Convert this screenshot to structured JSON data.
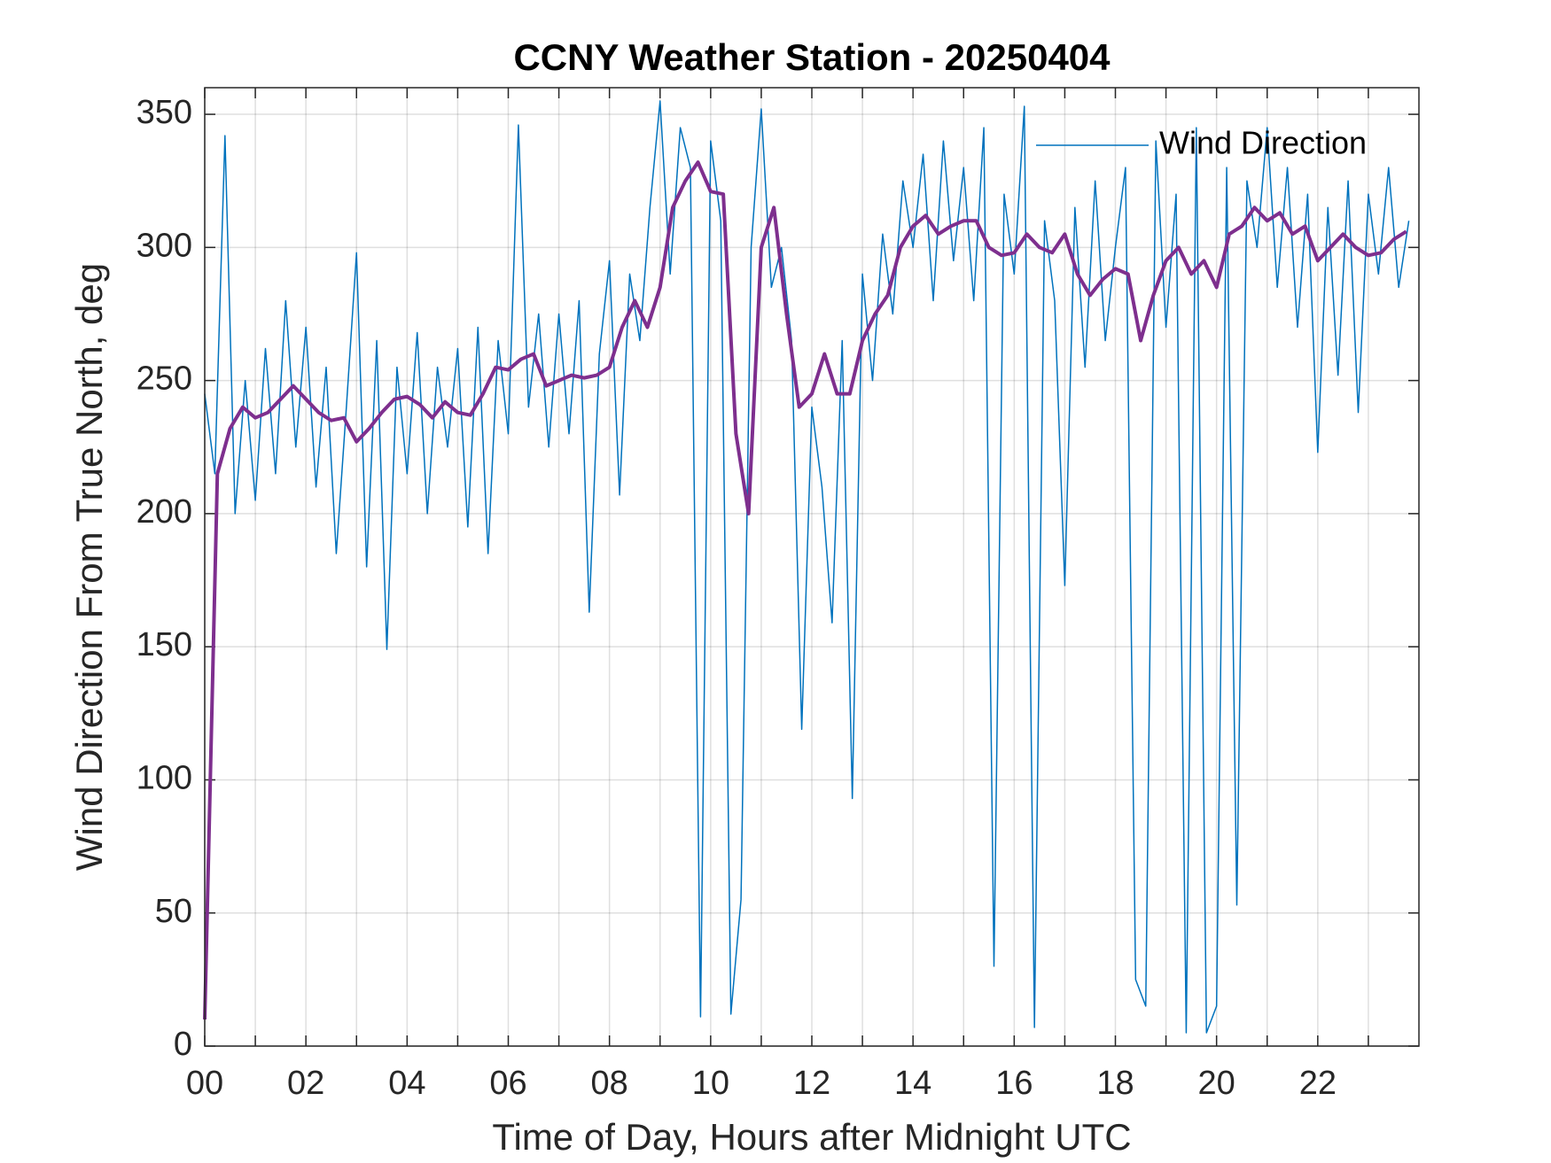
{
  "chart_data": {
    "type": "line",
    "title": "CCNY Weather Station - 20250404",
    "xlabel": "Time of Day, Hours after Midnight UTC",
    "ylabel": "Wind Direction From True North, deg",
    "xlim": [
      0,
      24
    ],
    "ylim": [
      0,
      360
    ],
    "xticks": [
      {
        "value": 0,
        "label": "00"
      },
      {
        "value": 2,
        "label": "02"
      },
      {
        "value": 4,
        "label": "04"
      },
      {
        "value": 6,
        "label": "06"
      },
      {
        "value": 8,
        "label": "08"
      },
      {
        "value": 10,
        "label": "10"
      },
      {
        "value": 12,
        "label": "12"
      },
      {
        "value": 14,
        "label": "14"
      },
      {
        "value": 16,
        "label": "16"
      },
      {
        "value": 18,
        "label": "18"
      },
      {
        "value": 20,
        "label": "20"
      },
      {
        "value": 22,
        "label": "22"
      }
    ],
    "xminor_ticks": [
      1,
      3,
      5,
      7,
      9,
      11,
      13,
      15,
      17,
      19,
      21,
      23
    ],
    "yticks": [
      0,
      50,
      100,
      150,
      200,
      250,
      300,
      350
    ],
    "grid": true,
    "legend": "northeast",
    "series": [
      {
        "name": "Wind Direction",
        "color": "#0072bd",
        "width": 1.5,
        "x": [
          0,
          0.2,
          0.4,
          0.6,
          0.8,
          1,
          1.2,
          1.4,
          1.6,
          1.8,
          2,
          2.2,
          2.4,
          2.6,
          2.8,
          3,
          3.2,
          3.4,
          3.6,
          3.8,
          4,
          4.2,
          4.4,
          4.6,
          4.8,
          5,
          5.2,
          5.4,
          5.6,
          5.8,
          6,
          6.2,
          6.4,
          6.6,
          6.8,
          7,
          7.2,
          7.4,
          7.6,
          7.8,
          8,
          8.2,
          8.4,
          8.6,
          8.8,
          9,
          9.2,
          9.4,
          9.6,
          9.8,
          10,
          10.2,
          10.4,
          10.6,
          10.8,
          11,
          11.2,
          11.4,
          11.6,
          11.8,
          12,
          12.2,
          12.4,
          12.6,
          12.8,
          13,
          13.2,
          13.4,
          13.6,
          13.8,
          14,
          14.2,
          14.4,
          14.6,
          14.8,
          15,
          15.2,
          15.4,
          15.6,
          15.8,
          16,
          16.2,
          16.4,
          16.6,
          16.8,
          17,
          17.2,
          17.4,
          17.6,
          17.8,
          18,
          18.2,
          18.4,
          18.6,
          18.8,
          19,
          19.2,
          19.4,
          19.6,
          19.8,
          20,
          20.2,
          20.4,
          20.6,
          20.8,
          21,
          21.2,
          21.4,
          21.6,
          21.8,
          22,
          22.2,
          22.4,
          22.6,
          22.8,
          23,
          23.2,
          23.4,
          23.6,
          23.8
        ],
        "values": [
          245,
          215,
          342,
          200,
          250,
          205,
          262,
          215,
          280,
          225,
          270,
          210,
          255,
          185,
          240,
          298,
          180,
          265,
          149,
          255,
          215,
          268,
          200,
          255,
          225,
          262,
          195,
          270,
          185,
          265,
          230,
          346,
          240,
          275,
          225,
          275,
          230,
          280,
          163,
          260,
          295,
          207,
          290,
          265,
          315,
          355,
          290,
          345,
          330,
          11,
          340,
          310,
          12,
          55,
          300,
          352,
          285,
          300,
          265,
          119,
          240,
          210,
          159,
          265,
          93,
          290,
          250,
          305,
          275,
          325,
          300,
          335,
          280,
          340,
          295,
          330,
          280,
          345,
          30,
          320,
          290,
          353,
          7,
          310,
          280,
          173,
          315,
          255,
          325,
          265,
          300,
          330,
          25,
          15,
          340,
          270,
          320,
          5,
          345,
          5,
          15,
          330,
          53,
          325,
          300,
          345,
          285,
          330,
          270,
          320,
          223,
          315,
          252,
          325,
          238,
          320,
          290,
          330,
          285,
          310
        ]
      },
      {
        "color": "#7e2f8e",
        "width": 4,
        "x": [
          0,
          0.25,
          0.5,
          0.75,
          1,
          1.25,
          1.5,
          1.75,
          2,
          2.25,
          2.5,
          2.75,
          3,
          3.25,
          3.5,
          3.75,
          4,
          4.25,
          4.5,
          4.75,
          5,
          5.25,
          5.5,
          5.75,
          6,
          6.25,
          6.5,
          6.75,
          7,
          7.25,
          7.5,
          7.75,
          8,
          8.25,
          8.5,
          8.75,
          9,
          9.25,
          9.5,
          9.75,
          10,
          10.25,
          10.5,
          10.75,
          11,
          11.25,
          11.5,
          11.75,
          12,
          12.25,
          12.5,
          12.75,
          13,
          13.25,
          13.5,
          13.75,
          14,
          14.25,
          14.5,
          14.75,
          15,
          15.25,
          15.5,
          15.75,
          16,
          16.25,
          16.5,
          16.75,
          17,
          17.25,
          17.5,
          17.75,
          18,
          18.25,
          18.5,
          18.75,
          19,
          19.25,
          19.5,
          19.75,
          20,
          20.25,
          20.5,
          20.75,
          21,
          21.25,
          21.5,
          21.75,
          22,
          22.25,
          22.5,
          22.75,
          23,
          23.25,
          23.5,
          23.75
        ],
        "values": [
          10,
          215,
          232,
          240,
          236,
          238,
          243,
          248,
          243,
          238,
          235,
          236,
          227,
          232,
          238,
          243,
          244,
          241,
          236,
          242,
          238,
          237,
          245,
          255,
          254,
          258,
          260,
          248,
          250,
          252,
          251,
          252,
          255,
          270,
          280,
          270,
          285,
          315,
          325,
          332,
          321,
          320,
          230,
          200,
          300,
          315,
          275,
          240,
          245,
          260,
          245,
          245,
          265,
          275,
          282,
          300,
          308,
          312,
          305,
          308,
          310,
          310,
          300,
          297,
          298,
          305,
          300,
          298,
          305,
          290,
          282,
          288,
          292,
          290,
          265,
          282,
          295,
          300,
          290,
          295,
          285,
          305,
          308,
          315,
          310,
          313,
          305,
          308,
          295,
          300,
          305,
          300,
          297,
          298,
          303,
          306
        ]
      }
    ]
  }
}
